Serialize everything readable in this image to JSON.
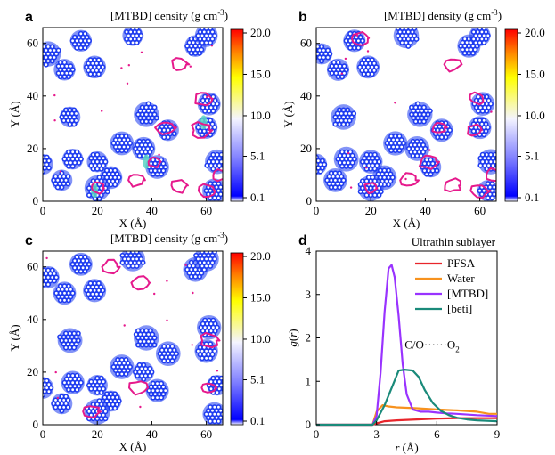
{
  "figure": {
    "colorbar": {
      "title": "[MTBD] density (g cm",
      "title_sup": "-3",
      "title_close": ")",
      "ticks": [
        "0.1",
        "5.1",
        "10.0",
        "15.0",
        "20.0"
      ],
      "colors": [
        "#ffffff",
        "#0000ff",
        "#8080ff",
        "#f4f4ff",
        "#ffff00",
        "#ff8000",
        "#ff0000"
      ]
    },
    "density_axes": {
      "xlabel": "X (Å)",
      "ylabel": "Y (Å)",
      "xticks": [
        "0",
        "20",
        "40",
        "60"
      ],
      "yticks": [
        "0",
        "20",
        "40",
        "60"
      ],
      "xlim": [
        0,
        66
      ],
      "ylim": [
        0,
        66
      ]
    },
    "panel_labels": [
      "a",
      "b",
      "c",
      "d"
    ],
    "rdf": {
      "title": "Ultrathin sublayer",
      "annotation": "C/O······O",
      "annotation_sub": "2",
      "ylabel_g": "g(",
      "ylabel_r": "r",
      "ylabel_close": ")",
      "xlabel": "r (Å)",
      "xticks": [
        "0",
        "3",
        "6",
        "9"
      ],
      "yticks": [
        "0",
        "1",
        "2",
        "3",
        "4"
      ],
      "legend": [
        "PFSA",
        "Water",
        "[MTBD]",
        "[beti]"
      ]
    },
    "colors": {
      "pfsa": "#e8252b",
      "water": "#f7921e",
      "mtbd": "#9933ff",
      "beti": "#1a8a7a",
      "cluster_blue": "#1e3cf0",
      "contour_magenta": "#e6198c",
      "cyan_core": "#5bd6c4"
    }
  },
  "chart_data": [
    {
      "type": "heatmap",
      "panel": "a",
      "title": "[MTBD] density (g cm-3)",
      "xlabel": "X (Å)",
      "ylabel": "Y (Å)",
      "xlim": [
        0,
        66
      ],
      "ylim": [
        0,
        66
      ],
      "colorbar_range": [
        0.1,
        20.0
      ],
      "clusters": [
        [
          2,
          56
        ],
        [
          14,
          61
        ],
        [
          8,
          50
        ],
        [
          19,
          51
        ],
        [
          33,
          63
        ],
        [
          56,
          59
        ],
        [
          60,
          63
        ],
        [
          10,
          32
        ],
        [
          38,
          33
        ],
        [
          46,
          27
        ],
        [
          29,
          22
        ],
        [
          37,
          20
        ],
        [
          11,
          16
        ],
        [
          20,
          15
        ],
        [
          61,
          37
        ],
        [
          60,
          28
        ],
        [
          64,
          15
        ],
        [
          7,
          8
        ],
        [
          25,
          9
        ],
        [
          20,
          5
        ],
        [
          63,
          4
        ],
        [
          42,
          13
        ],
        [
          0,
          14
        ]
      ],
      "contours": [
        [
          50,
          52
        ],
        [
          59,
          39
        ],
        [
          58,
          27
        ],
        [
          45,
          28
        ],
        [
          41,
          15
        ],
        [
          34,
          8
        ],
        [
          50,
          6
        ],
        [
          20,
          5
        ],
        [
          60,
          4
        ],
        [
          65,
          10
        ]
      ]
    },
    {
      "type": "heatmap",
      "panel": "b",
      "title": "[MTBD] density (g cm-3)",
      "xlabel": "X (Å)",
      "ylabel": "Y (Å)",
      "xlim": [
        0,
        66
      ],
      "ylim": [
        0,
        66
      ],
      "colorbar_range": [
        0.1,
        20.0
      ],
      "clusters": [
        [
          2,
          56
        ],
        [
          14,
          61
        ],
        [
          8,
          50
        ],
        [
          19,
          51
        ],
        [
          33,
          63
        ],
        [
          56,
          59
        ],
        [
          60,
          63
        ],
        [
          10,
          32
        ],
        [
          38,
          33
        ],
        [
          46,
          27
        ],
        [
          29,
          22
        ],
        [
          37,
          20
        ],
        [
          11,
          16
        ],
        [
          20,
          15
        ],
        [
          61,
          37
        ],
        [
          60,
          28
        ],
        [
          64,
          15
        ],
        [
          7,
          8
        ],
        [
          25,
          9
        ],
        [
          20,
          5
        ],
        [
          63,
          4
        ],
        [
          42,
          13
        ],
        [
          0,
          14
        ]
      ],
      "contours": [
        [
          16,
          62
        ],
        [
          50,
          52
        ],
        [
          59,
          39
        ],
        [
          58,
          27
        ],
        [
          45,
          28
        ],
        [
          41,
          15
        ],
        [
          34,
          8
        ],
        [
          50,
          6
        ],
        [
          20,
          5
        ],
        [
          60,
          4
        ],
        [
          65,
          10
        ]
      ]
    },
    {
      "type": "heatmap",
      "panel": "c",
      "title": "[MTBD] density (g cm-3)",
      "xlabel": "X (Å)",
      "ylabel": "Y (Å)",
      "xlim": [
        0,
        66
      ],
      "ylim": [
        0,
        66
      ],
      "colorbar_range": [
        0.1,
        20.0
      ],
      "clusters": [
        [
          2,
          56
        ],
        [
          14,
          61
        ],
        [
          8,
          50
        ],
        [
          19,
          51
        ],
        [
          33,
          63
        ],
        [
          56,
          59
        ],
        [
          60,
          63
        ],
        [
          10,
          32
        ],
        [
          38,
          33
        ],
        [
          46,
          27
        ],
        [
          29,
          22
        ],
        [
          37,
          20
        ],
        [
          11,
          16
        ],
        [
          20,
          15
        ],
        [
          61,
          37
        ],
        [
          60,
          28
        ],
        [
          64,
          15
        ],
        [
          7,
          8
        ],
        [
          25,
          9
        ],
        [
          20,
          5
        ],
        [
          63,
          4
        ],
        [
          42,
          13
        ],
        [
          0,
          14
        ]
      ],
      "contours": [
        [
          36,
          54
        ],
        [
          25,
          60
        ],
        [
          61,
          32
        ],
        [
          35,
          14
        ],
        [
          18,
          5
        ],
        [
          61,
          14
        ]
      ]
    },
    {
      "type": "line",
      "panel": "d",
      "title": "Ultrathin sublayer",
      "xlabel": "r (Å)",
      "ylabel": "g(r)",
      "xlim": [
        0,
        9
      ],
      "ylim": [
        0,
        4
      ],
      "series": [
        {
          "name": "PFSA",
          "x": [
            0,
            2.8,
            3.0,
            3.4,
            4,
            5,
            6,
            7,
            8,
            9
          ],
          "y": [
            0,
            0,
            0.03,
            0.08,
            0.1,
            0.12,
            0.14,
            0.15,
            0.15,
            0.15
          ]
        },
        {
          "name": "Water",
          "x": [
            0,
            2.8,
            3.0,
            3.3,
            3.6,
            4,
            5,
            6,
            7,
            8,
            8.6,
            9
          ],
          "y": [
            0,
            0,
            0.3,
            0.45,
            0.42,
            0.4,
            0.38,
            0.35,
            0.33,
            0.3,
            0.25,
            0.25
          ]
        },
        {
          "name": "[MTBD]",
          "x": [
            0,
            2.8,
            3.0,
            3.2,
            3.4,
            3.6,
            3.75,
            3.9,
            4.1,
            4.3,
            4.5,
            4.8,
            5.2,
            5.6,
            6,
            6.5,
            7,
            8,
            9
          ],
          "y": [
            0,
            0,
            0.2,
            1.2,
            2.6,
            3.6,
            3.68,
            3.4,
            2.5,
            1.4,
            0.7,
            0.35,
            0.3,
            0.3,
            0.28,
            0.26,
            0.25,
            0.22,
            0.2
          ]
        },
        {
          "name": "[beti]",
          "x": [
            0,
            2.8,
            3.0,
            3.4,
            3.8,
            4.1,
            4.4,
            4.8,
            5.1,
            5.4,
            5.8,
            6.2,
            6.6,
            7,
            7.5,
            8,
            9
          ],
          "y": [
            0,
            0,
            0.1,
            0.45,
            0.9,
            1.25,
            1.27,
            1.25,
            1.1,
            0.8,
            0.5,
            0.32,
            0.22,
            0.16,
            0.12,
            0.1,
            0.08
          ]
        }
      ],
      "annotation": "C/O······O2"
    }
  ]
}
